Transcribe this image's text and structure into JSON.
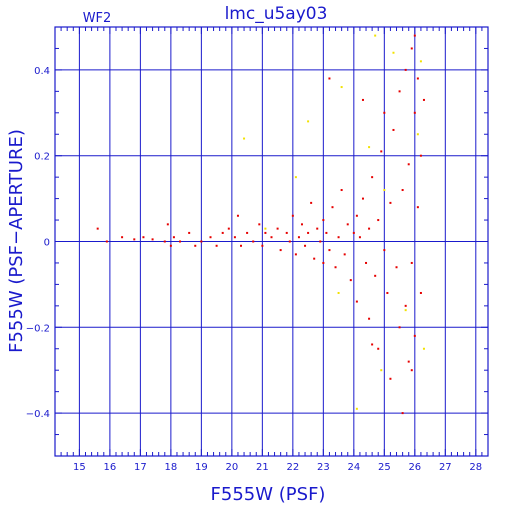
{
  "chart_data": {
    "type": "scatter",
    "title": "lmc_u5ay03",
    "panel_label": "WF2",
    "xlabel": "F555W (PSF)",
    "ylabel": "F555W (PSF−APERTURE)",
    "xlim": [
      14.2,
      28.4
    ],
    "ylim": [
      -0.5,
      0.5
    ],
    "x_ticks": [
      15,
      16,
      17,
      18,
      19,
      20,
      21,
      22,
      23,
      24,
      25,
      26,
      27,
      28
    ],
    "x_tick_labels": [
      "15",
      "16",
      "17",
      "18",
      "19",
      "20",
      "21",
      "22",
      "23",
      "24",
      "25",
      "26",
      "27",
      "28"
    ],
    "y_ticks": [
      -0.4,
      -0.2,
      0,
      0.2,
      0.4
    ],
    "y_tick_labels": [
      "−0.4",
      "−0.2",
      "0",
      "0.2",
      "0.4"
    ],
    "grid": true,
    "colors": {
      "frame": "#1a1acc",
      "grid": "#1a1acc",
      "text": "#1a1acc",
      "red_points": "#e60000",
      "yellow_points": "#f2e200"
    },
    "series": [
      {
        "color": "#e60000",
        "points": [
          [
            15.6,
            0.03
          ],
          [
            15.9,
            0.0
          ],
          [
            16.4,
            0.01
          ],
          [
            16.8,
            0.005
          ],
          [
            17.1,
            0.01
          ],
          [
            17.4,
            0.005
          ],
          [
            17.8,
            0.0
          ],
          [
            17.9,
            0.04
          ],
          [
            18.0,
            -0.01
          ],
          [
            18.1,
            0.01
          ],
          [
            18.3,
            0.0
          ],
          [
            18.6,
            0.02
          ],
          [
            18.8,
            -0.01
          ],
          [
            19.0,
            0.0
          ],
          [
            19.3,
            0.01
          ],
          [
            19.5,
            -0.01
          ],
          [
            19.7,
            0.02
          ],
          [
            19.9,
            0.03
          ],
          [
            20.1,
            0.01
          ],
          [
            20.2,
            0.06
          ],
          [
            20.3,
            -0.01
          ],
          [
            20.5,
            0.02
          ],
          [
            20.7,
            0.0
          ],
          [
            20.9,
            0.04
          ],
          [
            21.0,
            -0.01
          ],
          [
            21.1,
            0.02
          ],
          [
            21.3,
            0.01
          ],
          [
            21.5,
            0.03
          ],
          [
            21.6,
            -0.02
          ],
          [
            21.8,
            0.02
          ],
          [
            21.9,
            0.0
          ],
          [
            22.0,
            0.06
          ],
          [
            22.1,
            -0.03
          ],
          [
            22.2,
            0.01
          ],
          [
            22.3,
            0.04
          ],
          [
            22.4,
            -0.01
          ],
          [
            22.5,
            0.02
          ],
          [
            22.6,
            0.09
          ],
          [
            22.7,
            -0.04
          ],
          [
            22.8,
            0.03
          ],
          [
            22.9,
            0.0
          ],
          [
            23.0,
            -0.05
          ],
          [
            23.0,
            0.05
          ],
          [
            23.1,
            0.02
          ],
          [
            23.2,
            -0.02
          ],
          [
            23.3,
            0.08
          ],
          [
            23.4,
            -0.06
          ],
          [
            23.5,
            0.01
          ],
          [
            23.6,
            0.12
          ],
          [
            23.7,
            -0.03
          ],
          [
            23.8,
            0.04
          ],
          [
            23.9,
            -0.09
          ],
          [
            24.0,
            0.02
          ],
          [
            24.1,
            0.06
          ],
          [
            24.1,
            -0.14
          ],
          [
            24.2,
            0.01
          ],
          [
            24.3,
            0.1
          ],
          [
            24.4,
            -0.05
          ],
          [
            24.5,
            0.03
          ],
          [
            24.5,
            -0.18
          ],
          [
            24.6,
            0.15
          ],
          [
            24.7,
            -0.08
          ],
          [
            24.8,
            0.05
          ],
          [
            24.8,
            -0.25
          ],
          [
            24.9,
            0.21
          ],
          [
            25.0,
            -0.02
          ],
          [
            25.0,
            0.3
          ],
          [
            25.1,
            -0.12
          ],
          [
            25.2,
            0.09
          ],
          [
            25.2,
            -0.32
          ],
          [
            25.3,
            0.26
          ],
          [
            25.4,
            -0.06
          ],
          [
            25.5,
            0.35
          ],
          [
            25.5,
            -0.2
          ],
          [
            25.6,
            0.12
          ],
          [
            25.7,
            -0.15
          ],
          [
            25.7,
            0.4
          ],
          [
            25.8,
            0.18
          ],
          [
            25.8,
            -0.28
          ],
          [
            25.9,
            0.45
          ],
          [
            25.9,
            -0.05
          ],
          [
            26.0,
            0.3
          ],
          [
            26.0,
            -0.22
          ],
          [
            26.1,
            0.38
          ],
          [
            26.1,
            0.08
          ],
          [
            26.2,
            -0.12
          ],
          [
            26.2,
            0.2
          ],
          [
            26.3,
            0.33
          ],
          [
            25.6,
            -0.4
          ],
          [
            23.2,
            0.38
          ],
          [
            24.3,
            0.33
          ],
          [
            24.6,
            -0.24
          ],
          [
            25.9,
            -0.3
          ],
          [
            26.0,
            0.48
          ]
        ]
      },
      {
        "color": "#f2e200",
        "points": [
          [
            20.4,
            0.24
          ],
          [
            22.1,
            0.15
          ],
          [
            22.5,
            0.28
          ],
          [
            23.6,
            0.36
          ],
          [
            24.1,
            -0.39
          ],
          [
            24.5,
            0.22
          ],
          [
            24.7,
            0.48
          ],
          [
            24.9,
            -0.3
          ],
          [
            25.0,
            0.12
          ],
          [
            25.3,
            0.44
          ],
          [
            25.7,
            -0.16
          ],
          [
            26.1,
            0.25
          ],
          [
            26.2,
            0.42
          ],
          [
            26.3,
            -0.25
          ],
          [
            21.1,
            0.03
          ],
          [
            23.5,
            -0.12
          ]
        ]
      }
    ]
  }
}
